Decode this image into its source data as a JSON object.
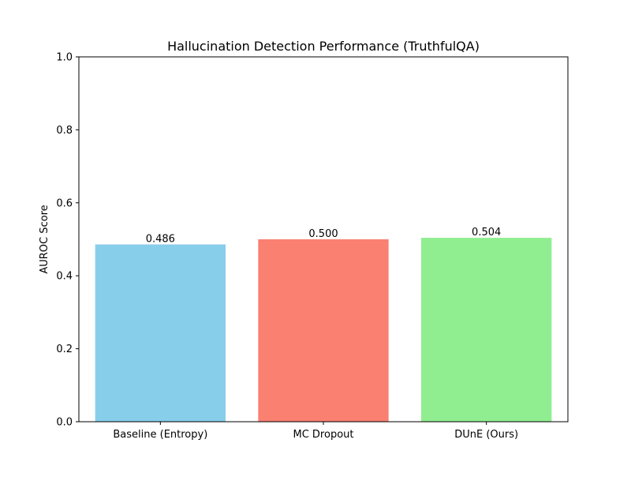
{
  "chart_data": {
    "type": "bar",
    "title": "Hallucination Detection Performance (TruthfulQA)",
    "xlabel": "",
    "ylabel": "AUROC Score",
    "categories": [
      "Baseline (Entropy)",
      "MC Dropout",
      "DUnE (Ours)"
    ],
    "values": [
      0.486,
      0.5,
      0.504
    ],
    "value_labels": [
      "0.486",
      "0.500",
      "0.504"
    ],
    "colors": [
      "#87ceeb",
      "#fa8072",
      "#90ee90"
    ],
    "ylim": [
      0,
      1.0
    ],
    "yticks": [
      0.0,
      0.2,
      0.4,
      0.6,
      0.8,
      1.0
    ],
    "ytick_labels": [
      "0.0",
      "0.2",
      "0.4",
      "0.6",
      "0.8",
      "1.0"
    ],
    "grid": false,
    "legend": "none"
  }
}
